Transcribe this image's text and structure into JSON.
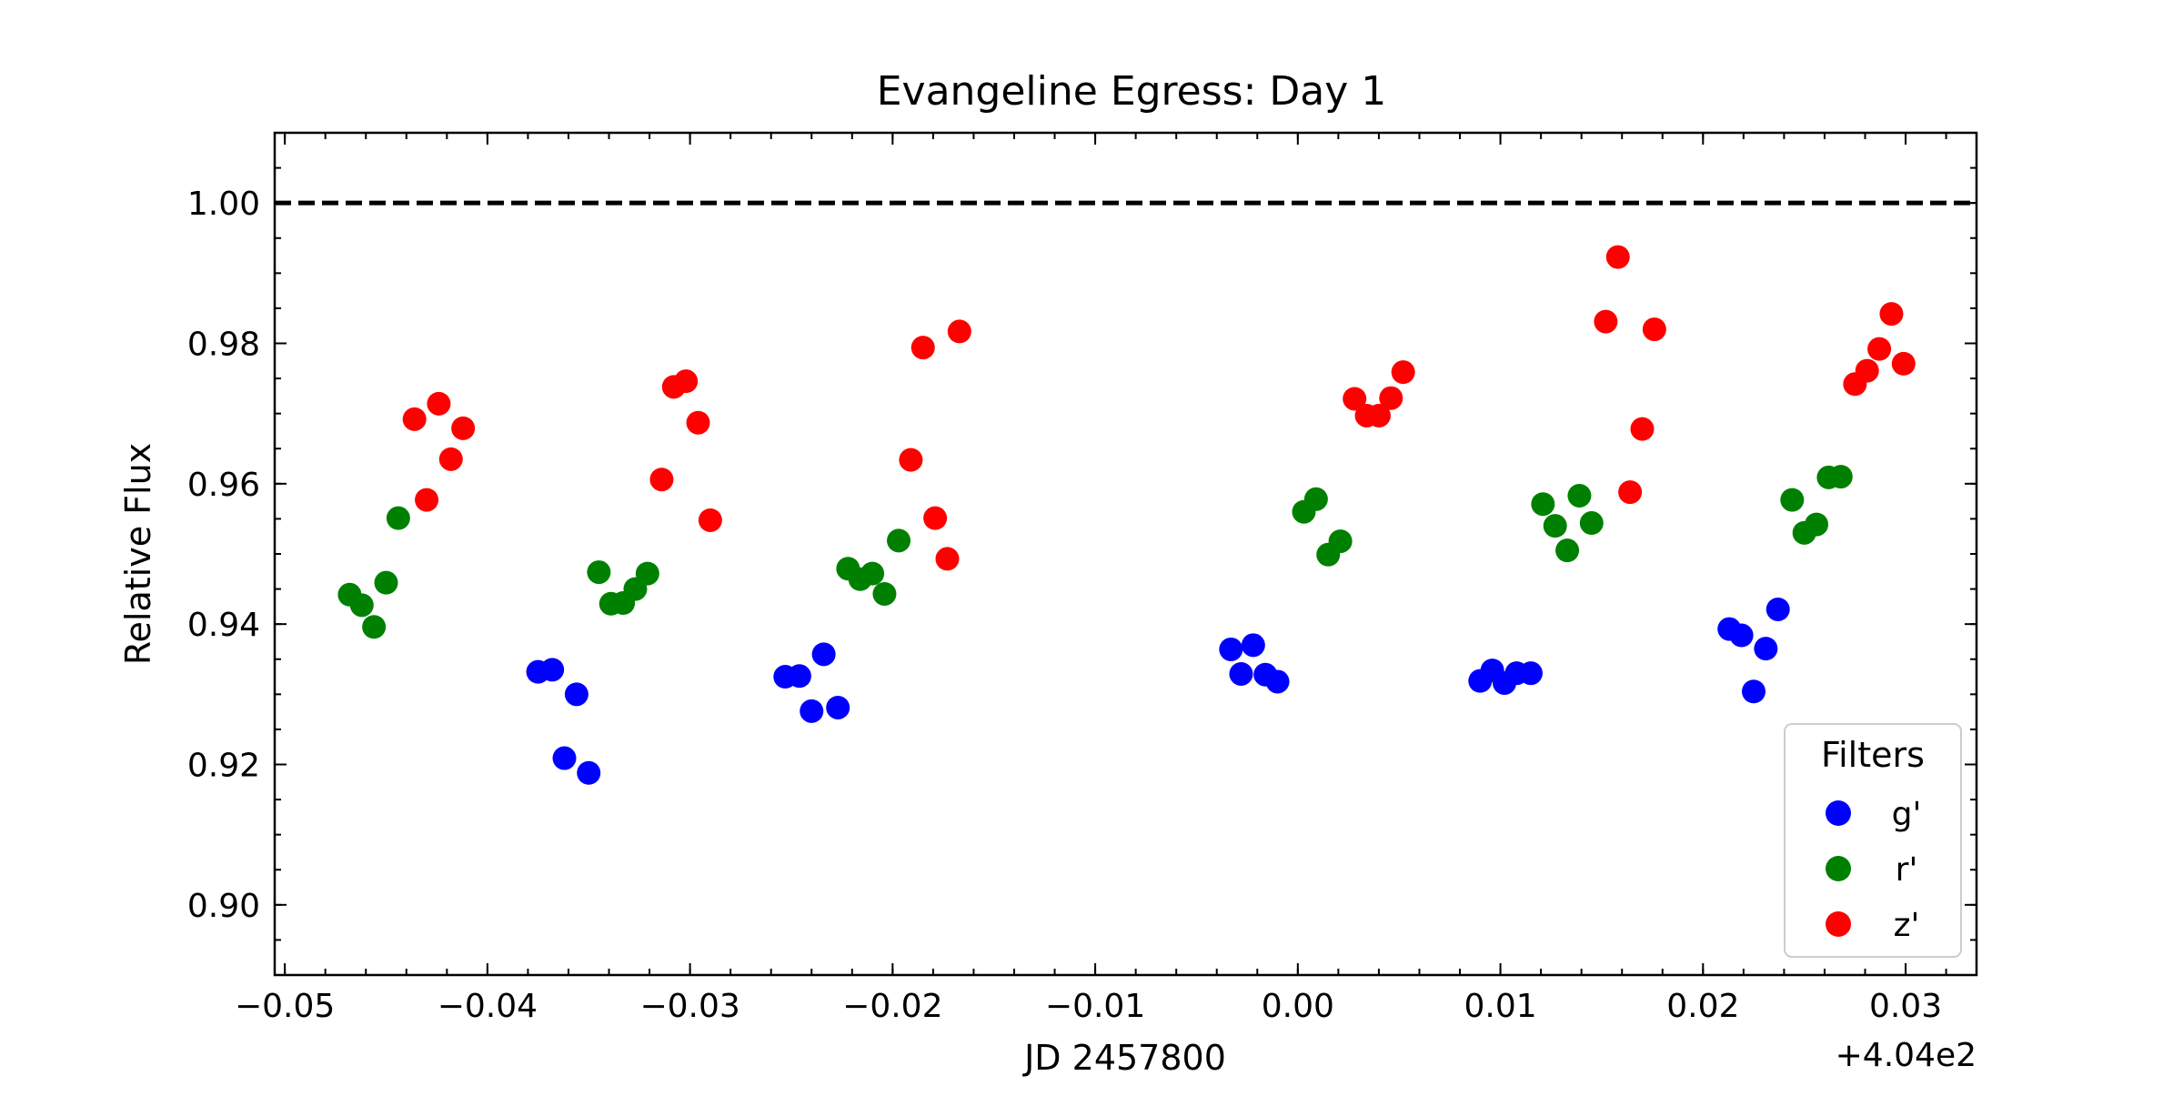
{
  "chart_data": {
    "type": "scatter",
    "title": "Evangeline Egress: Day 1",
    "xlabel": "JD 2457800",
    "ylabel": "Relative Flux",
    "x_offset_label": "+4.04e2",
    "xlim": [
      -0.0505,
      0.0335
    ],
    "ylim": [
      0.89,
      1.01
    ],
    "x_ticks": [
      -0.05,
      -0.04,
      -0.03,
      -0.02,
      -0.01,
      0.0,
      0.01,
      0.02,
      0.03
    ],
    "x_tick_labels": [
      "−0.05",
      "−0.04",
      "−0.03",
      "−0.02",
      "−0.01",
      "0.00",
      "0.01",
      "0.02",
      "0.03"
    ],
    "y_ticks": [
      0.9,
      0.92,
      0.94,
      0.96,
      0.98,
      1.0
    ],
    "y_tick_labels": [
      "0.90",
      "0.92",
      "0.94",
      "0.96",
      "0.98",
      "1.00"
    ],
    "reference_line": {
      "y": 1.0,
      "style": "dashed",
      "color": "#000000"
    },
    "grid": false,
    "legend": {
      "title": "Filters",
      "location": "lower right"
    },
    "series": [
      {
        "name": "g'",
        "color": "#0000ff",
        "points": [
          [
            -0.0375,
            0.9332
          ],
          [
            -0.0368,
            0.9335
          ],
          [
            -0.0362,
            0.9209
          ],
          [
            -0.0356,
            0.93
          ],
          [
            -0.035,
            0.9188
          ],
          [
            -0.0253,
            0.9325
          ],
          [
            -0.0246,
            0.9326
          ],
          [
            -0.024,
            0.9276
          ],
          [
            -0.0234,
            0.9357
          ],
          [
            -0.0227,
            0.9281
          ],
          [
            -0.0033,
            0.9364
          ],
          [
            -0.0028,
            0.9329
          ],
          [
            -0.0022,
            0.937
          ],
          [
            -0.0016,
            0.9328
          ],
          [
            -0.001,
            0.9318
          ],
          [
            0.009,
            0.9319
          ],
          [
            0.0096,
            0.9334
          ],
          [
            0.0102,
            0.9316
          ],
          [
            0.0108,
            0.933
          ],
          [
            0.0115,
            0.933
          ],
          [
            0.0213,
            0.9393
          ],
          [
            0.0219,
            0.9384
          ],
          [
            0.0225,
            0.9304
          ],
          [
            0.0231,
            0.9365
          ],
          [
            0.0237,
            0.9421
          ]
        ]
      },
      {
        "name": "r'",
        "color": "#008000",
        "points": [
          [
            -0.0468,
            0.9442
          ],
          [
            -0.0462,
            0.9427
          ],
          [
            -0.0456,
            0.9396
          ],
          [
            -0.045,
            0.9459
          ],
          [
            -0.0444,
            0.9551
          ],
          [
            -0.0345,
            0.9474
          ],
          [
            -0.0339,
            0.9429
          ],
          [
            -0.0333,
            0.943
          ],
          [
            -0.0327,
            0.945
          ],
          [
            -0.0321,
            0.9472
          ],
          [
            -0.0222,
            0.9479
          ],
          [
            -0.0216,
            0.9464
          ],
          [
            -0.021,
            0.9472
          ],
          [
            -0.0204,
            0.9443
          ],
          [
            -0.0197,
            0.9519
          ],
          [
            0.0003,
            0.956
          ],
          [
            0.0009,
            0.9578
          ],
          [
            0.0015,
            0.9499
          ],
          [
            0.0021,
            0.9518
          ],
          [
            0.0121,
            0.9571
          ],
          [
            0.0127,
            0.954
          ],
          [
            0.0133,
            0.9505
          ],
          [
            0.0139,
            0.9583
          ],
          [
            0.0145,
            0.9544
          ],
          [
            0.0244,
            0.9577
          ],
          [
            0.025,
            0.953
          ],
          [
            0.0256,
            0.9542
          ],
          [
            0.0262,
            0.9609
          ],
          [
            0.0268,
            0.961
          ]
        ]
      },
      {
        "name": "z'",
        "color": "#ff0000",
        "points": [
          [
            -0.0436,
            0.9692
          ],
          [
            -0.043,
            0.9577
          ],
          [
            -0.0424,
            0.9714
          ],
          [
            -0.0418,
            0.9635
          ],
          [
            -0.0412,
            0.9679
          ],
          [
            -0.0314,
            0.9606
          ],
          [
            -0.0308,
            0.9738
          ],
          [
            -0.0302,
            0.9746
          ],
          [
            -0.0296,
            0.9687
          ],
          [
            -0.029,
            0.9548
          ],
          [
            -0.0191,
            0.9634
          ],
          [
            -0.0185,
            0.9794
          ],
          [
            -0.0179,
            0.9551
          ],
          [
            -0.0173,
            0.9493
          ],
          [
            -0.0167,
            0.9817
          ],
          [
            0.0028,
            0.9721
          ],
          [
            0.0034,
            0.9697
          ],
          [
            0.004,
            0.9697
          ],
          [
            0.0046,
            0.9722
          ],
          [
            0.0052,
            0.9759
          ],
          [
            0.0152,
            0.9831
          ],
          [
            0.0158,
            0.9923
          ],
          [
            0.0164,
            0.9588
          ],
          [
            0.017,
            0.9678
          ],
          [
            0.0176,
            0.982
          ],
          [
            0.0275,
            0.9742
          ],
          [
            0.0281,
            0.9761
          ],
          [
            0.0287,
            0.9792
          ],
          [
            0.0293,
            0.9842
          ],
          [
            0.0299,
            0.9771
          ]
        ]
      }
    ]
  }
}
